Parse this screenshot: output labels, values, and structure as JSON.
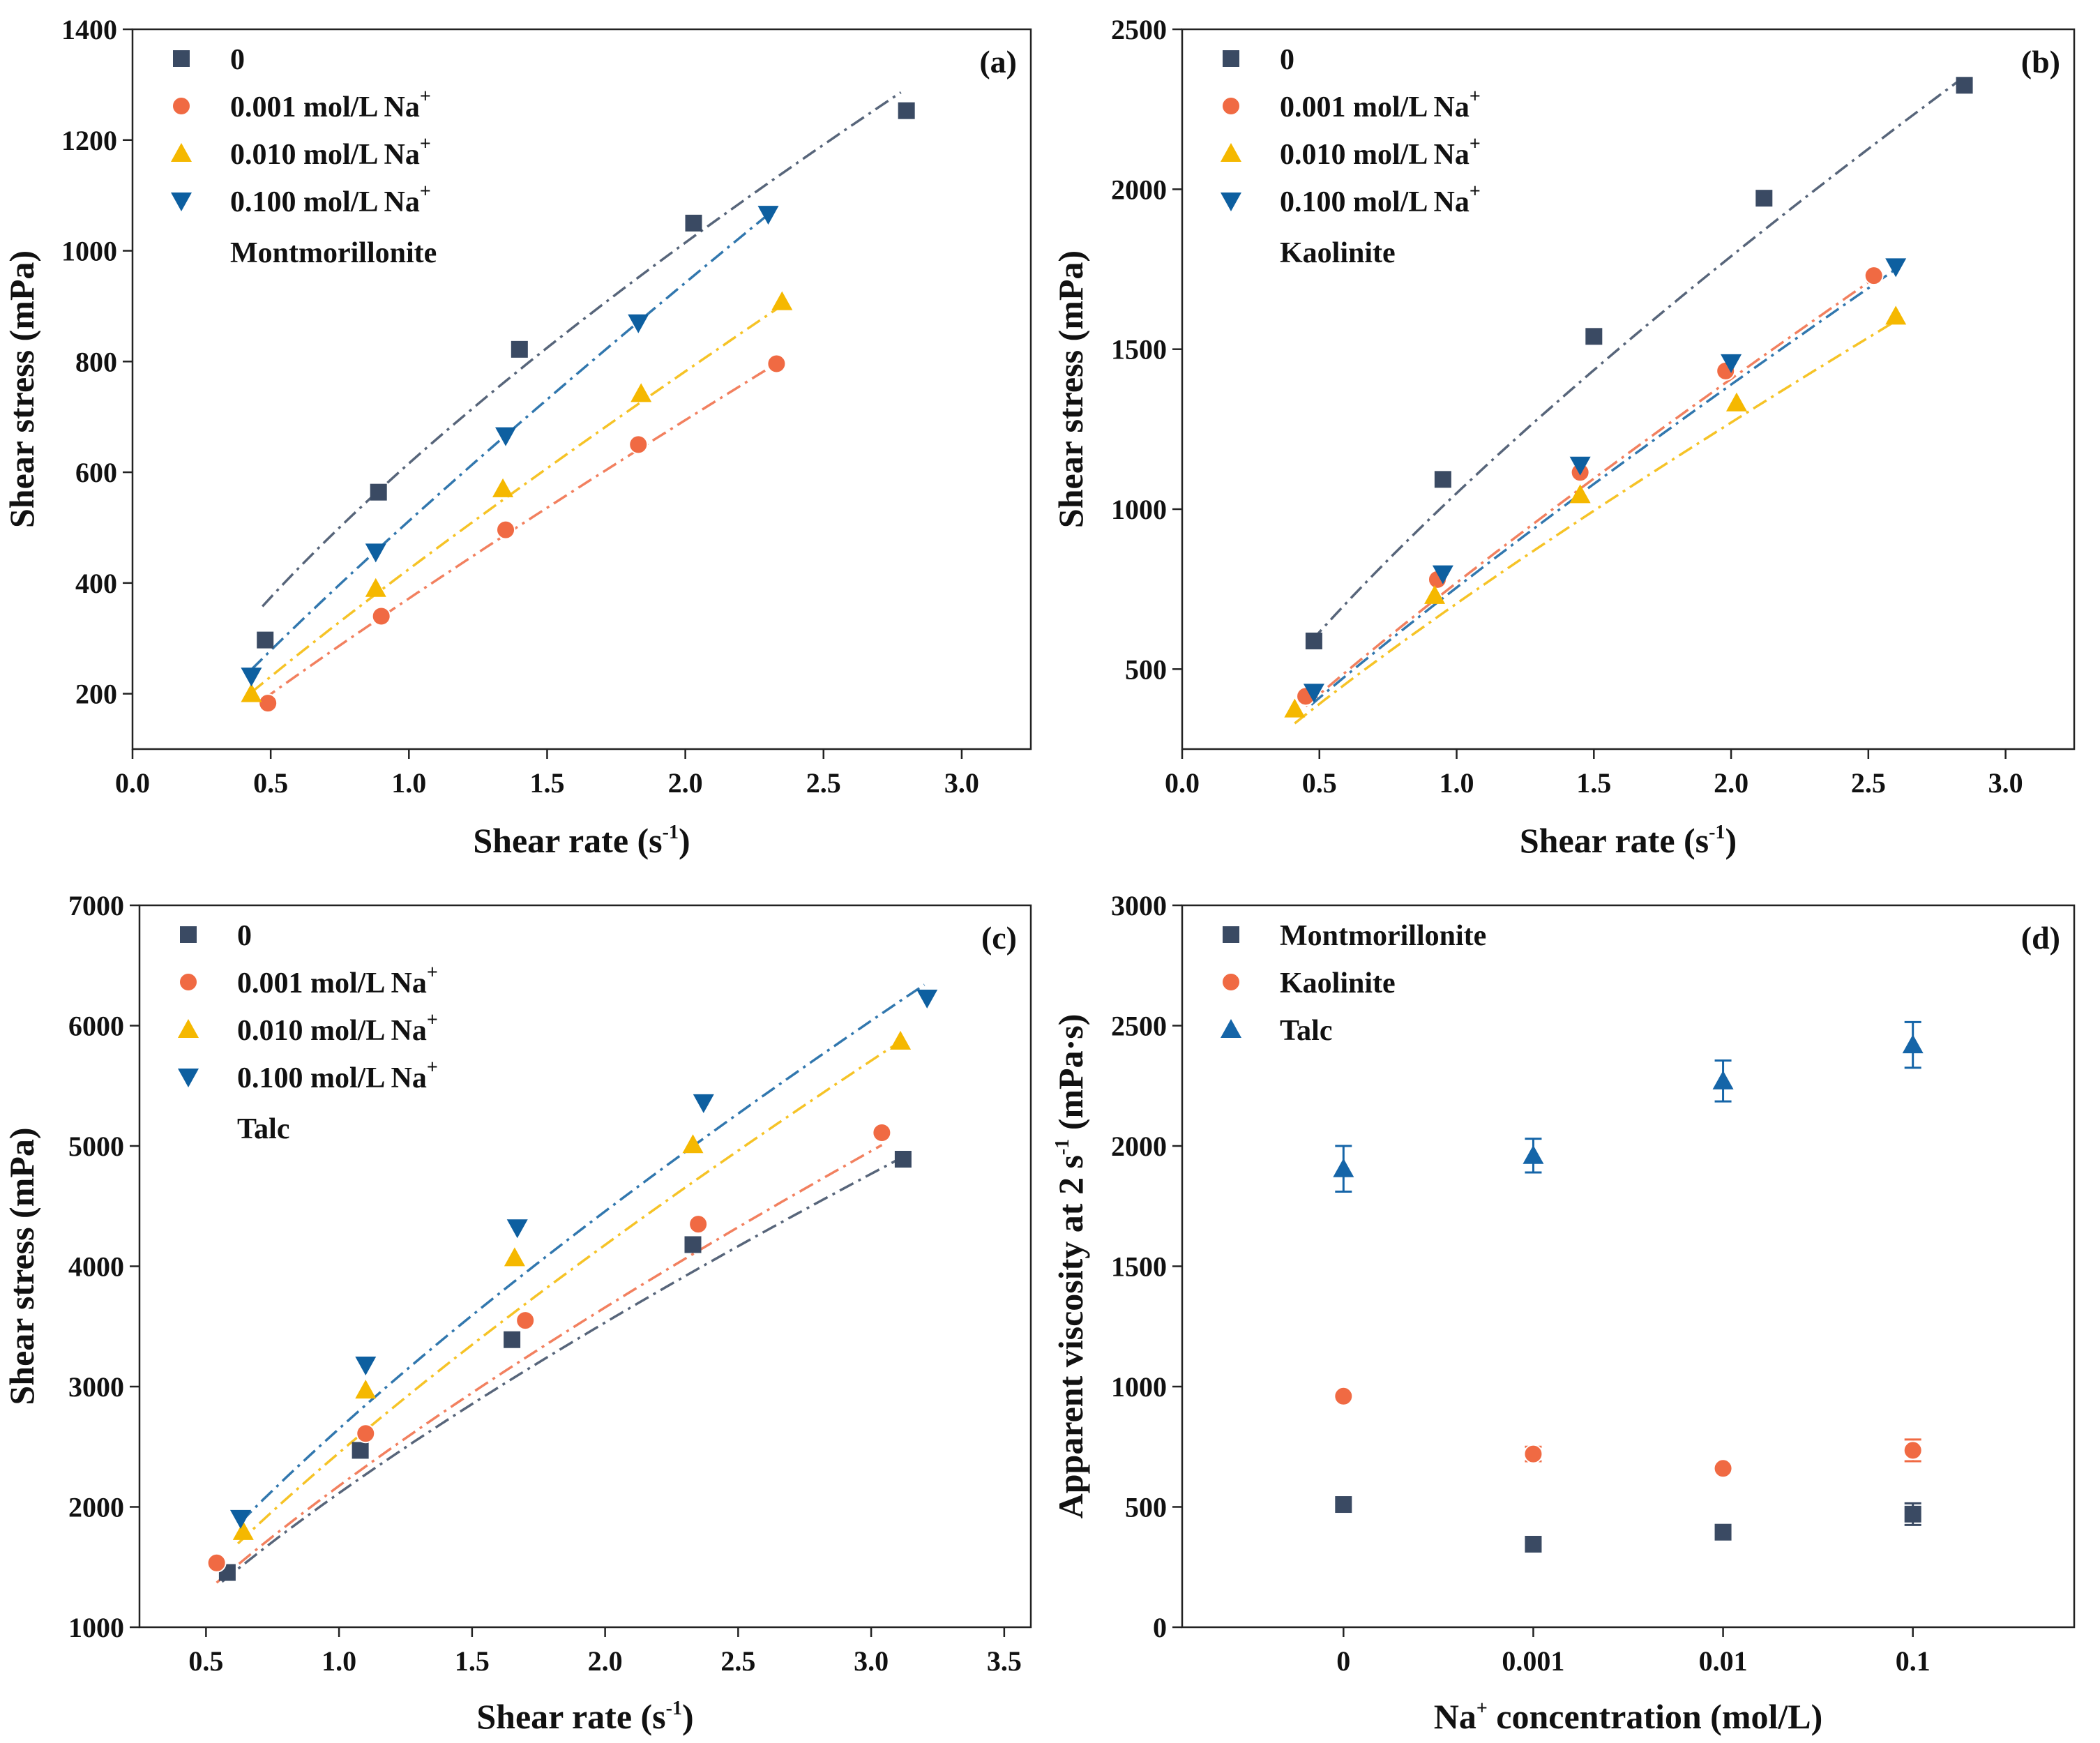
{
  "colors": {
    "series_0": "#3a4a63",
    "series_0001": "#f06a43",
    "series_0010": "#f5b800",
    "series_0100": "#0d5fa0",
    "talc": "#1565a8"
  },
  "chart_data": [
    {
      "panel_tag": "(a)",
      "type": "scatter",
      "title": "Montmorillonite",
      "xlabel": "Shear rate (s",
      "xlabel_sup": "-1",
      "xlabel_tail": ")",
      "ylabel": "Shear stress (mPa)",
      "xlim": [
        0,
        3.25
      ],
      "ylim": [
        100,
        1400
      ],
      "xticks": [
        0,
        0.5,
        1,
        1.5,
        2,
        2.5,
        3
      ],
      "xtick_labels": [
        "0.0",
        "0.5",
        "1.0",
        "1.5",
        "2.0",
        "2.5",
        "3.0"
      ],
      "yticks": [
        200,
        400,
        600,
        800,
        1000,
        1200,
        1400
      ],
      "ytick_labels": [
        "200",
        "400",
        "600",
        "800",
        "1000",
        "1200",
        "1400"
      ],
      "legend_position": "top-left",
      "series": [
        {
          "name": "0",
          "sup": "",
          "marker": "square",
          "color": "#3a4a63",
          "x": [
            0.48,
            0.89,
            1.4,
            2.03,
            2.8
          ],
          "y": [
            297,
            564,
            822,
            1050,
            1253
          ],
          "fit": {
            "x": [
              0.47,
              2.78
            ],
            "k": 616,
            "n": 0.72
          }
        },
        {
          "name": "0.001 mol/L Na",
          "sup": "+",
          "marker": "circle",
          "color": "#f06a43",
          "x": [
            0.49,
            0.9,
            1.35,
            1.83,
            2.33
          ],
          "y": [
            183,
            340,
            496,
            650,
            796
          ],
          "fit": {
            "x": [
              0.47,
              2.33
            ],
            "k": 372,
            "n": 0.9
          }
        },
        {
          "name": "0.010 mol/L Na",
          "sup": "+",
          "marker": "triangle-up",
          "color": "#f5b800",
          "x": [
            0.43,
            0.88,
            1.34,
            1.84,
            2.35
          ],
          "y": [
            200,
            390,
            570,
            742,
            908
          ],
          "fit": {
            "x": [
              0.43,
              2.35
            ],
            "k": 425,
            "n": 0.88
          }
        },
        {
          "name": "0.100 mol/L Na",
          "sup": "+",
          "marker": "triangle-down",
          "color": "#0d5fa0",
          "x": [
            0.43,
            0.88,
            1.35,
            1.83,
            2.3
          ],
          "y": [
            232,
            456,
            666,
            870,
            1066
          ],
          "fit": {
            "x": [
              0.43,
              2.3
            ],
            "k": 512,
            "n": 0.88
          }
        }
      ]
    },
    {
      "panel_tag": "(b)",
      "type": "scatter",
      "title": "Kaolinite",
      "xlabel": "Shear rate (s",
      "xlabel_sup": "-1",
      "xlabel_tail": ")",
      "ylabel": "Shear stress (mPa)",
      "xlim": [
        0,
        3.25
      ],
      "ylim": [
        250,
        2500
      ],
      "xticks": [
        0,
        0.5,
        1,
        1.5,
        2,
        2.5,
        3
      ],
      "xtick_labels": [
        "0.0",
        "0.5",
        "1.0",
        "1.5",
        "2.0",
        "2.5",
        "3.0"
      ],
      "yticks": [
        500,
        1000,
        1500,
        2000,
        2500
      ],
      "ytick_labels": [
        "500",
        "1000",
        "1500",
        "2000",
        "2500"
      ],
      "legend_position": "top-left",
      "series": [
        {
          "name": "0",
          "sup": "",
          "marker": "square",
          "color": "#3a4a63",
          "x": [
            0.48,
            0.95,
            1.5,
            2.12,
            2.85
          ],
          "y": [
            588,
            1093,
            1540,
            1972,
            2325
          ],
          "fit": {
            "x": [
              0.47,
              2.83
            ],
            "k": 1050,
            "n": 0.77
          }
        },
        {
          "name": "0.001 mol/L Na",
          "sup": "+",
          "marker": "circle",
          "color": "#f06a43",
          "x": [
            0.45,
            0.93,
            1.45,
            1.98,
            2.52
          ],
          "y": [
            415,
            780,
            1115,
            1432,
            1730
          ],
          "fit": {
            "x": [
              0.45,
              2.53
            ],
            "k": 770,
            "n": 0.87
          }
        },
        {
          "name": "0.010 mol/L Na",
          "sup": "+",
          "marker": "triangle-up",
          "color": "#f5b800",
          "x": [
            0.41,
            0.92,
            1.45,
            2.02,
            2.6
          ],
          "y": [
            375,
            730,
            1045,
            1332,
            1603
          ],
          "fit": {
            "x": [
              0.41,
              2.6
            ],
            "k": 705,
            "n": 0.85
          }
        },
        {
          "name": "0.100 mol/L Na",
          "sup": "+",
          "marker": "triangle-down",
          "color": "#0d5fa0",
          "x": [
            0.48,
            0.95,
            1.45,
            2.0,
            2.6
          ],
          "y": [
            428,
            798,
            1138,
            1458,
            1758
          ],
          "fit": {
            "x": [
              0.47,
              2.6
            ],
            "k": 755,
            "n": 0.88
          }
        }
      ]
    },
    {
      "panel_tag": "(c)",
      "type": "scatter",
      "title": "Talc",
      "xlabel": "Shear rate (s",
      "xlabel_sup": "-1",
      "xlabel_tail": ")",
      "ylabel": "Shear stress (mPa)",
      "xlim": [
        0.25,
        3.6
      ],
      "ylim": [
        1000,
        7000
      ],
      "xticks": [
        0.5,
        1,
        1.5,
        2,
        2.5,
        3,
        3.5
      ],
      "xtick_labels": [
        "0.5",
        "1.0",
        "1.5",
        "2.0",
        "2.5",
        "3.0",
        "3.5"
      ],
      "yticks": [
        1000,
        2000,
        3000,
        4000,
        5000,
        6000,
        7000
      ],
      "ytick_labels": [
        "1000",
        "2000",
        "3000",
        "4000",
        "5000",
        "6000",
        "7000"
      ],
      "legend_position": "top-left",
      "series": [
        {
          "name": "0",
          "sup": "",
          "marker": "square",
          "color": "#3a4a63",
          "x": [
            0.58,
            1.08,
            1.65,
            2.33,
            3.12
          ],
          "y": [
            1455,
            2470,
            3390,
            4180,
            4890
          ],
          "fit": {
            "x": [
              0.56,
              3.1
            ],
            "k": 2115,
            "n": 0.74
          }
        },
        {
          "name": "0.001 mol/L Na",
          "sup": "+",
          "marker": "circle",
          "color": "#f06a43",
          "x": [
            0.54,
            1.1,
            1.7,
            2.35,
            3.04
          ],
          "y": [
            1535,
            2610,
            3550,
            4350,
            5110
          ],
          "fit": {
            "x": [
              0.54,
              3.04
            ],
            "k": 2175,
            "n": 0.75
          }
        },
        {
          "name": "0.010 mol/L Na",
          "sup": "+",
          "marker": "triangle-up",
          "color": "#f5b800",
          "x": [
            0.64,
            1.1,
            1.66,
            2.33,
            3.11
          ],
          "y": [
            1795,
            2970,
            4070,
            5010,
            5870
          ],
          "fit": {
            "x": [
              0.62,
              3.1
            ],
            "k": 2450,
            "n": 0.77
          }
        },
        {
          "name": "0.100 mol/L Na",
          "sup": "+",
          "marker": "triangle-down",
          "color": "#0d5fa0",
          "x": [
            0.63,
            1.1,
            1.67,
            2.37,
            3.21
          ],
          "y": [
            1905,
            3180,
            4320,
            5360,
            6230
          ],
          "fit": {
            "x": [
              0.63,
              3.2
            ],
            "k": 2650,
            "n": 0.75
          }
        }
      ]
    },
    {
      "panel_tag": "(d)",
      "type": "scatter",
      "title": "",
      "xlabel": "Na",
      "xlabel_sup": "+",
      "xlabel_tail": " concentration (mol/L)",
      "ylabel": "Apparent viscosity at 2 s",
      "ylabel_sup": "-1",
      "ylabel_tail": " (mPa·s)",
      "xlim": [
        -0.85,
        3.85
      ],
      "ylim": [
        0,
        3000
      ],
      "xticks": [
        0,
        1,
        2,
        3
      ],
      "xtick_labels": [
        "0",
        "0.001",
        "0.01",
        "0.1"
      ],
      "yticks": [
        0,
        500,
        1000,
        1500,
        2000,
        2500,
        3000
      ],
      "ytick_labels": [
        "0",
        "500",
        "1000",
        "1500",
        "2000",
        "2500",
        "3000"
      ],
      "legend_position": "top-left",
      "series": [
        {
          "name": "Montmorillonite",
          "sup": "",
          "marker": "square",
          "color": "#3a4a63",
          "x": [
            0,
            1,
            2,
            3
          ],
          "y": [
            510,
            345,
            395,
            470
          ],
          "err": [
            0,
            0,
            0,
            45
          ]
        },
        {
          "name": "Kaolinite",
          "sup": "",
          "marker": "circle",
          "color": "#f06a43",
          "x": [
            0,
            1,
            2,
            3
          ],
          "y": [
            960,
            720,
            660,
            735
          ],
          "err": [
            0,
            30,
            0,
            45
          ]
        },
        {
          "name": "Talc",
          "sup": "",
          "marker": "triangle-up",
          "color": "#1565a8",
          "x": [
            0,
            1,
            2,
            3
          ],
          "y": [
            1905,
            1960,
            2270,
            2420
          ],
          "err": [
            95,
            70,
            85,
            95
          ]
        }
      ]
    }
  ]
}
